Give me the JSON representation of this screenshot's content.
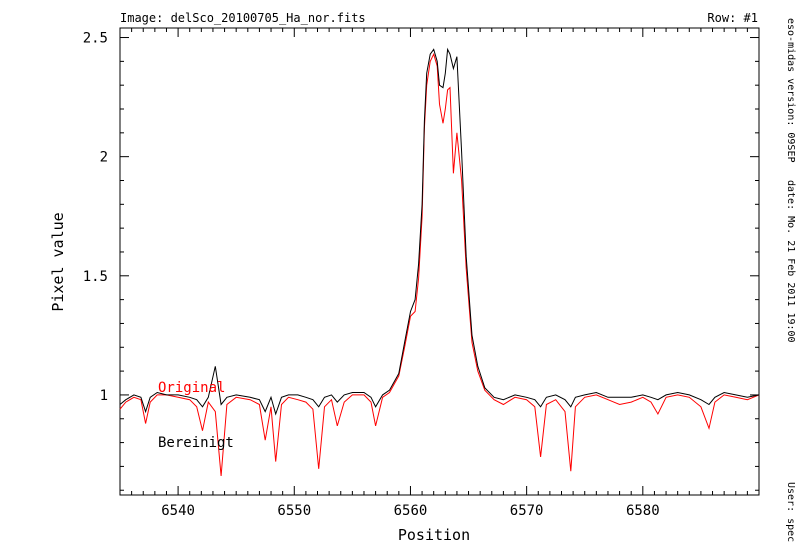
{
  "header": {
    "image_label": "Image: delSco_20100705_Ha_nor.fits",
    "row_label": "Row: #1"
  },
  "sidebar": {
    "version": "eso-midas version: 09SEP",
    "date": "date: Mo. 21 Feb 2011 19:00",
    "user": "User: spec"
  },
  "chart_data": {
    "type": "line",
    "xlabel": "Position",
    "ylabel": "Pixel value",
    "xlim": [
      6535,
      6590
    ],
    "ylim": [
      0.58,
      2.54
    ],
    "x_ticks": [
      6540,
      6550,
      6560,
      6570,
      6580
    ],
    "y_ticks": [
      1,
      1.5,
      2,
      2.5
    ],
    "x_tick_labels": [
      "6540",
      "6550",
      "6560",
      "6570",
      "6580"
    ],
    "y_tick_labels": [
      "1",
      "1.5",
      "2",
      "2.5"
    ],
    "legend": [
      {
        "label": "Original",
        "color": "#ff0000"
      },
      {
        "label": "Bereinigt",
        "color": "#000000"
      }
    ],
    "series": [
      {
        "name": "Original",
        "color": "#ff0000",
        "x": [
          6535,
          6535.5,
          6536.2,
          6536.8,
          6537.2,
          6537.6,
          6538.2,
          6539,
          6540,
          6541,
          6541.6,
          6542.1,
          6542.6,
          6543.2,
          6543.7,
          6544.2,
          6545,
          6546.2,
          6547,
          6547.5,
          6548,
          6548.4,
          6548.9,
          6549.5,
          6550.3,
          6551,
          6551.6,
          6552.1,
          6552.6,
          6553.2,
          6553.7,
          6554.3,
          6555,
          6556,
          6556.6,
          6557,
          6557.6,
          6558.2,
          6559,
          6559.5,
          6560,
          6560.4,
          6560.7,
          6561,
          6561.2,
          6561.4,
          6561.7,
          6562,
          6562.3,
          6562.5,
          6562.8,
          6563,
          6563.2,
          6563.4,
          6563.7,
          6564,
          6564.4,
          6564.8,
          6565.3,
          6565.8,
          6566.4,
          6567.2,
          6568,
          6569,
          6570,
          6570.7,
          6571.2,
          6571.7,
          6572.5,
          6573.3,
          6573.8,
          6574.2,
          6575,
          6576,
          6577,
          6578,
          6579,
          6580,
          6580.7,
          6581.3,
          6582,
          6583,
          6584,
          6585,
          6585.7,
          6586.2,
          6587,
          6588,
          6589,
          6590
        ],
        "y": [
          0.94,
          0.97,
          0.99,
          0.98,
          0.88,
          0.97,
          1.0,
          1.0,
          0.99,
          0.98,
          0.95,
          0.85,
          0.97,
          0.93,
          0.66,
          0.96,
          0.99,
          0.98,
          0.96,
          0.81,
          0.95,
          0.72,
          0.96,
          0.99,
          0.98,
          0.97,
          0.94,
          0.69,
          0.95,
          0.98,
          0.87,
          0.97,
          1.0,
          1.0,
          0.97,
          0.87,
          0.99,
          1.01,
          1.08,
          1.2,
          1.33,
          1.35,
          1.49,
          1.75,
          2.12,
          2.3,
          2.4,
          2.43,
          2.38,
          2.22,
          2.14,
          2.2,
          2.28,
          2.29,
          1.93,
          2.1,
          1.9,
          1.53,
          1.22,
          1.1,
          1.02,
          0.98,
          0.96,
          0.99,
          0.98,
          0.95,
          0.74,
          0.96,
          0.98,
          0.93,
          0.68,
          0.95,
          0.99,
          1.0,
          0.98,
          0.96,
          0.97,
          0.99,
          0.97,
          0.92,
          0.99,
          1.0,
          0.99,
          0.95,
          0.86,
          0.97,
          1.0,
          0.99,
          0.98,
          1.0
        ]
      },
      {
        "name": "Bereinigt",
        "color": "#000000",
        "x": [
          6535,
          6535.5,
          6536.2,
          6536.8,
          6537.2,
          6537.6,
          6538.2,
          6539,
          6540,
          6541,
          6541.6,
          6542.1,
          6542.6,
          6543.2,
          6543.7,
          6544.2,
          6545,
          6546.2,
          6547,
          6547.5,
          6548,
          6548.4,
          6548.9,
          6549.5,
          6550.3,
          6551,
          6551.6,
          6552.1,
          6552.6,
          6553.2,
          6553.7,
          6554.3,
          6555,
          6556,
          6556.6,
          6557,
          6557.6,
          6558.2,
          6559,
          6559.5,
          6560,
          6560.4,
          6560.7,
          6561,
          6561.2,
          6561.4,
          6561.7,
          6562,
          6562.3,
          6562.5,
          6562.8,
          6563,
          6563.2,
          6563.4,
          6563.7,
          6564,
          6564.4,
          6564.8,
          6565.3,
          6565.8,
          6566.4,
          6567.2,
          6568,
          6569,
          6570,
          6570.7,
          6571.2,
          6571.7,
          6572.5,
          6573.3,
          6573.8,
          6574.2,
          6575,
          6576,
          6577,
          6578,
          6579,
          6580,
          6580.7,
          6581.3,
          6582,
          6583,
          6584,
          6585,
          6585.7,
          6586.2,
          6587,
          6588,
          6589,
          6590
        ],
        "y": [
          0.96,
          0.98,
          1.0,
          0.99,
          0.93,
          0.99,
          1.01,
          1.0,
          1.0,
          0.99,
          0.98,
          0.95,
          0.99,
          1.12,
          0.96,
          0.99,
          1.0,
          0.99,
          0.98,
          0.93,
          0.99,
          0.92,
          0.99,
          1.0,
          1.0,
          0.99,
          0.98,
          0.95,
          0.99,
          1.0,
          0.97,
          1.0,
          1.01,
          1.01,
          0.99,
          0.95,
          1.0,
          1.02,
          1.09,
          1.22,
          1.35,
          1.4,
          1.55,
          1.8,
          2.15,
          2.35,
          2.43,
          2.45,
          2.4,
          2.3,
          2.29,
          2.35,
          2.45,
          2.43,
          2.37,
          2.42,
          2.02,
          1.58,
          1.25,
          1.12,
          1.03,
          0.99,
          0.98,
          1.0,
          0.99,
          0.98,
          0.95,
          0.99,
          1.0,
          0.98,
          0.95,
          0.99,
          1.0,
          1.01,
          0.99,
          0.99,
          0.99,
          1.0,
          0.99,
          0.98,
          1.0,
          1.01,
          1.0,
          0.98,
          0.96,
          0.99,
          1.01,
          1.0,
          0.99,
          1.0
        ]
      }
    ]
  }
}
